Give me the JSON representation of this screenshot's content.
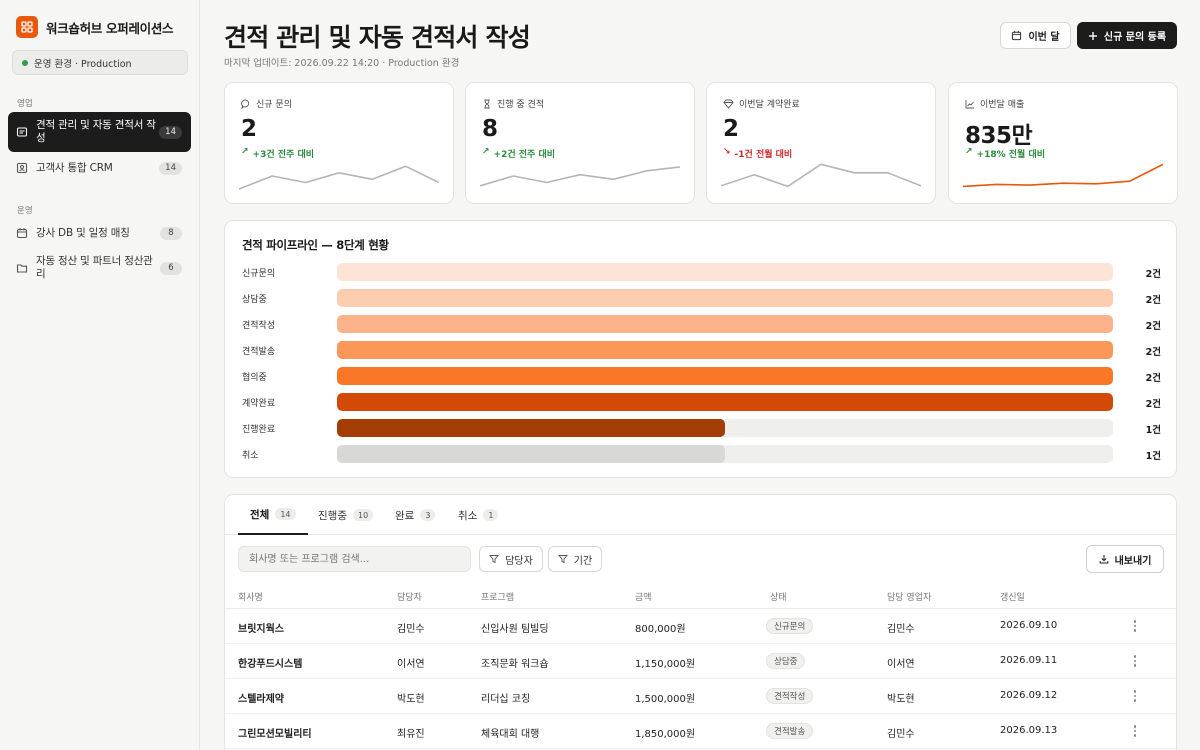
{
  "sidebar": {
    "brand_name": "워크숍허브 오퍼레이션스",
    "env_label": "운영 환경 · Production",
    "sections": [
      {
        "label": "영업"
      },
      {
        "label": "운영"
      }
    ],
    "items": [
      {
        "label": "견적 관리 및 자동 견적서 작성",
        "badge": "14",
        "active": true
      },
      {
        "label": "고객사 통합 CRM",
        "badge": "14"
      },
      {
        "label": "강사 DB 및 일정 매칭",
        "badge": "8"
      },
      {
        "label": "자동 정산 및 파트너 정산관리",
        "badge": "6"
      }
    ]
  },
  "header": {
    "title": "견적 관리 및 자동 견적서 작성",
    "subtitle": "마지막 업데이트: 2026.09.22 14:20 · Production 환경",
    "month_button": "이번 달",
    "new_button": "신규 문의 등록"
  },
  "stats": [
    {
      "label": "신규 문의",
      "value": "2",
      "delta": "+3건 전주 대비",
      "direction": "up",
      "arrow": "↗",
      "spark": [
        4,
        2,
        3,
        1.5,
        2.5,
        0.5,
        3
      ],
      "color": "#b5b5b5"
    },
    {
      "label": "진행 중 견적",
      "value": "8",
      "delta": "+2건 전주 대비",
      "direction": "up",
      "arrow": "↗",
      "spark": [
        3.5,
        2,
        3,
        1.8,
        2.5,
        1.2,
        0.6
      ],
      "color": "#b5b5b5"
    },
    {
      "label": "이번달 계약완료",
      "value": "2",
      "delta": "-1건 전월 대비",
      "direction": "down",
      "arrow": "↘",
      "spark": [
        3.5,
        1.8,
        3.6,
        0.2,
        1.5,
        1.5,
        3.5
      ],
      "color": "#b5b5b5"
    },
    {
      "label": "이번달 매출",
      "value": "835만",
      "delta": "+18% 전월 대비",
      "direction": "up",
      "arrow": "↗",
      "spark": [
        3.6,
        3.3,
        3.4,
        3.1,
        3.2,
        2.8,
        0.2
      ],
      "color": "#e8590c"
    }
  ],
  "pipeline": {
    "title": "견적 파이프라인 — 8단계 현황",
    "stages": [
      {
        "label": "신규문의",
        "count_label": "2건",
        "value": 2,
        "color": "#fde4d6"
      },
      {
        "label": "상담중",
        "count_label": "2건",
        "value": 2,
        "color": "#fdcdb0"
      },
      {
        "label": "견적작성",
        "count_label": "2건",
        "value": 2,
        "color": "#fcb389"
      },
      {
        "label": "견적발송",
        "count_label": "2건",
        "value": 2,
        "color": "#fb9758"
      },
      {
        "label": "협의중",
        "count_label": "2건",
        "value": 2,
        "color": "#f97726"
      },
      {
        "label": "계약완료",
        "count_label": "2건",
        "value": 2,
        "color": "#d24a05"
      },
      {
        "label": "진행완료",
        "count_label": "1건",
        "value": 1,
        "color": "#a33d04"
      },
      {
        "label": "취소",
        "count_label": "1건",
        "value": 1,
        "color": "#d8d8d6"
      }
    ],
    "max": 2
  },
  "tabs": [
    {
      "label": "전체",
      "count": "14",
      "active": true
    },
    {
      "label": "진행중",
      "count": "10"
    },
    {
      "label": "완료",
      "count": "3"
    },
    {
      "label": "취소",
      "count": "1"
    }
  ],
  "toolbar": {
    "search_placeholder": "회사명 또는 프로그램 검색...",
    "owner_filter": "담당자",
    "period_filter": "기간",
    "export_label": "내보내기"
  },
  "table": {
    "columns": [
      "회사명",
      "담당자",
      "프로그램",
      "금액",
      "상태",
      "담당 영업자",
      "갱신일"
    ],
    "rows": [
      {
        "company": "브릿지웍스",
        "contact": "김민수",
        "program": "신입사원 팀빌딩",
        "amount": "800,000원",
        "status": "신규문의",
        "sales": "김민수",
        "updated": "2026.09.10"
      },
      {
        "company": "한강푸드시스템",
        "contact": "이서연",
        "program": "조직문화 워크숍",
        "amount": "1,150,000원",
        "status": "상담중",
        "sales": "이서연",
        "updated": "2026.09.11"
      },
      {
        "company": "스텔라제약",
        "contact": "박도현",
        "program": "리더십 코칭",
        "amount": "1,500,000원",
        "status": "견적작성",
        "sales": "박도현",
        "updated": "2026.09.12"
      },
      {
        "company": "그린모션모빌리티",
        "contact": "최유진",
        "program": "체육대회 대행",
        "amount": "1,850,000원",
        "status": "견적발송",
        "sales": "김민수",
        "updated": "2026.09.13"
      }
    ]
  }
}
